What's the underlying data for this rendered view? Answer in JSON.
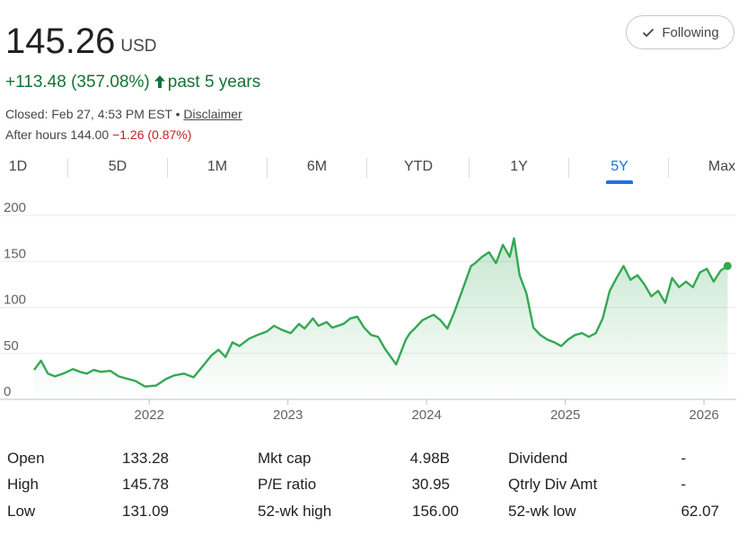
{
  "quote": {
    "price": "145.26",
    "currency": "USD",
    "change": "+113.48 (357.08%)",
    "period": "past 5 years",
    "closed_text": "Closed: Feb 27, 4:53 PM EST •",
    "disclaimer": "Disclaimer",
    "after_hours_label": "After hours 144.00",
    "after_hours_change": "−1.26 (0.87%)",
    "follow_label": "Following"
  },
  "tabs": [
    {
      "label": "1D"
    },
    {
      "label": "5D"
    },
    {
      "label": "1M"
    },
    {
      "label": "6M"
    },
    {
      "label": "YTD"
    },
    {
      "label": "1Y"
    },
    {
      "label": "5Y",
      "active": true
    },
    {
      "label": "Max"
    }
  ],
  "colors": {
    "line": "#34a853",
    "accent": "#1a73e8",
    "positive": "#137333",
    "negative": "#c5221f"
  },
  "chart_data": {
    "type": "area",
    "ylim": [
      0,
      200
    ],
    "yticks": [
      "0",
      "50",
      "100",
      "150",
      "200"
    ],
    "xticks": [
      {
        "label": "2022",
        "x": 2022.0
      },
      {
        "label": "2023",
        "x": 2023.0
      },
      {
        "label": "2024",
        "x": 2024.0
      },
      {
        "label": "2025",
        "x": 2025.0
      },
      {
        "label": "2026",
        "x": 2026.0
      }
    ],
    "xrange": [
      2021.17,
      2026.2
    ],
    "grid": true,
    "series": [
      {
        "x": [
          2021.17,
          2021.22,
          2021.27,
          2021.32,
          2021.38,
          2021.45,
          2021.5,
          2021.55,
          2021.6,
          2021.65,
          2021.72,
          2021.78,
          2021.85,
          2021.9,
          2021.97,
          2022.05,
          2022.12,
          2022.18,
          2022.25,
          2022.32,
          2022.38,
          2022.45,
          2022.5,
          2022.55,
          2022.6,
          2022.65,
          2022.72,
          2022.78,
          2022.85,
          2022.9,
          2022.95,
          2023.02,
          2023.08,
          2023.12,
          2023.18,
          2023.22,
          2023.28,
          2023.32,
          2023.4,
          2023.45,
          2023.5,
          2023.55,
          2023.6,
          2023.65,
          2023.7,
          2023.78,
          2023.85,
          2023.88,
          2023.92,
          2023.97,
          2024.05,
          2024.1,
          2024.15,
          2024.2,
          2024.28,
          2024.32,
          2024.35,
          2024.4,
          2024.45,
          2024.5,
          2024.55,
          2024.6,
          2024.63,
          2024.67,
          2024.72,
          2024.77,
          2024.82,
          2024.87,
          2024.92,
          2024.97,
          2025.02,
          2025.07,
          2025.12,
          2025.17,
          2025.22,
          2025.27,
          2025.32,
          2025.37,
          2025.42,
          2025.47,
          2025.52,
          2025.57,
          2025.62,
          2025.67,
          2025.72,
          2025.77,
          2025.82,
          2025.87,
          2025.92,
          2025.97,
          2026.02,
          2026.07,
          2026.12,
          2026.17
        ],
        "y": [
          32,
          42,
          28,
          25,
          28,
          33,
          30,
          28,
          32,
          30,
          31,
          25,
          22,
          20,
          14,
          15,
          22,
          26,
          28,
          24,
          35,
          48,
          54,
          46,
          62,
          58,
          66,
          70,
          74,
          80,
          76,
          72,
          82,
          77,
          88,
          80,
          84,
          78,
          82,
          88,
          90,
          78,
          70,
          68,
          55,
          38,
          65,
          72,
          78,
          86,
          92,
          86,
          77,
          95,
          128,
          145,
          148,
          155,
          160,
          148,
          168,
          155,
          175,
          135,
          115,
          78,
          70,
          65,
          62,
          58,
          65,
          70,
          72,
          68,
          72,
          88,
          118,
          132,
          145,
          130,
          135,
          125,
          112,
          118,
          105,
          132,
          122,
          128,
          122,
          138,
          142,
          128,
          140,
          145
        ]
      }
    ]
  },
  "stats": [
    [
      {
        "label": "Open",
        "value": "133.28"
      },
      {
        "label": "Mkt cap",
        "value": "4.98B"
      },
      {
        "label": "Dividend",
        "value": "-"
      }
    ],
    [
      {
        "label": "High",
        "value": "145.78"
      },
      {
        "label": "P/E ratio",
        "value": "30.95"
      },
      {
        "label": "Qtrly Div Amt",
        "value": "-"
      }
    ],
    [
      {
        "label": "Low",
        "value": "131.09"
      },
      {
        "label": "52-wk high",
        "value": "156.00"
      },
      {
        "label": "52-wk low",
        "value": "62.07"
      }
    ]
  ]
}
